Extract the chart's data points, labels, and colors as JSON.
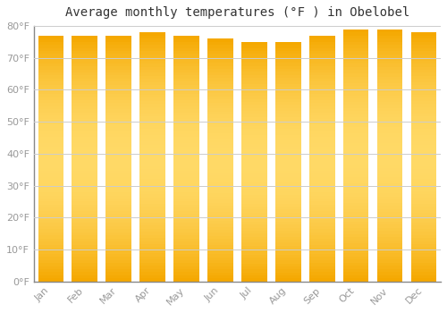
{
  "title": "Average monthly temperatures (°F ) in Obelobel",
  "months": [
    "Jan",
    "Feb",
    "Mar",
    "Apr",
    "May",
    "Jun",
    "Jul",
    "Aug",
    "Sep",
    "Oct",
    "Nov",
    "Dec"
  ],
  "values": [
    77,
    77,
    77,
    78,
    77,
    76,
    75,
    75,
    77,
    79,
    79,
    78
  ],
  "bar_color_bottom": "#F5A800",
  "bar_color_mid": "#FFD966",
  "bar_color_top": "#F5A800",
  "background_color": "#FFFFFF",
  "plot_bg_color": "#FFFFFF",
  "grid_color": "#CCCCCC",
  "text_color": "#999999",
  "title_color": "#333333",
  "ylim": [
    0,
    80
  ],
  "yticks": [
    0,
    10,
    20,
    30,
    40,
    50,
    60,
    70,
    80
  ],
  "ytick_labels": [
    "0°F",
    "10°F",
    "20°F",
    "30°F",
    "40°F",
    "50°F",
    "60°F",
    "70°F",
    "80°F"
  ],
  "title_fontsize": 10,
  "tick_fontsize": 8,
  "bar_width": 0.75
}
